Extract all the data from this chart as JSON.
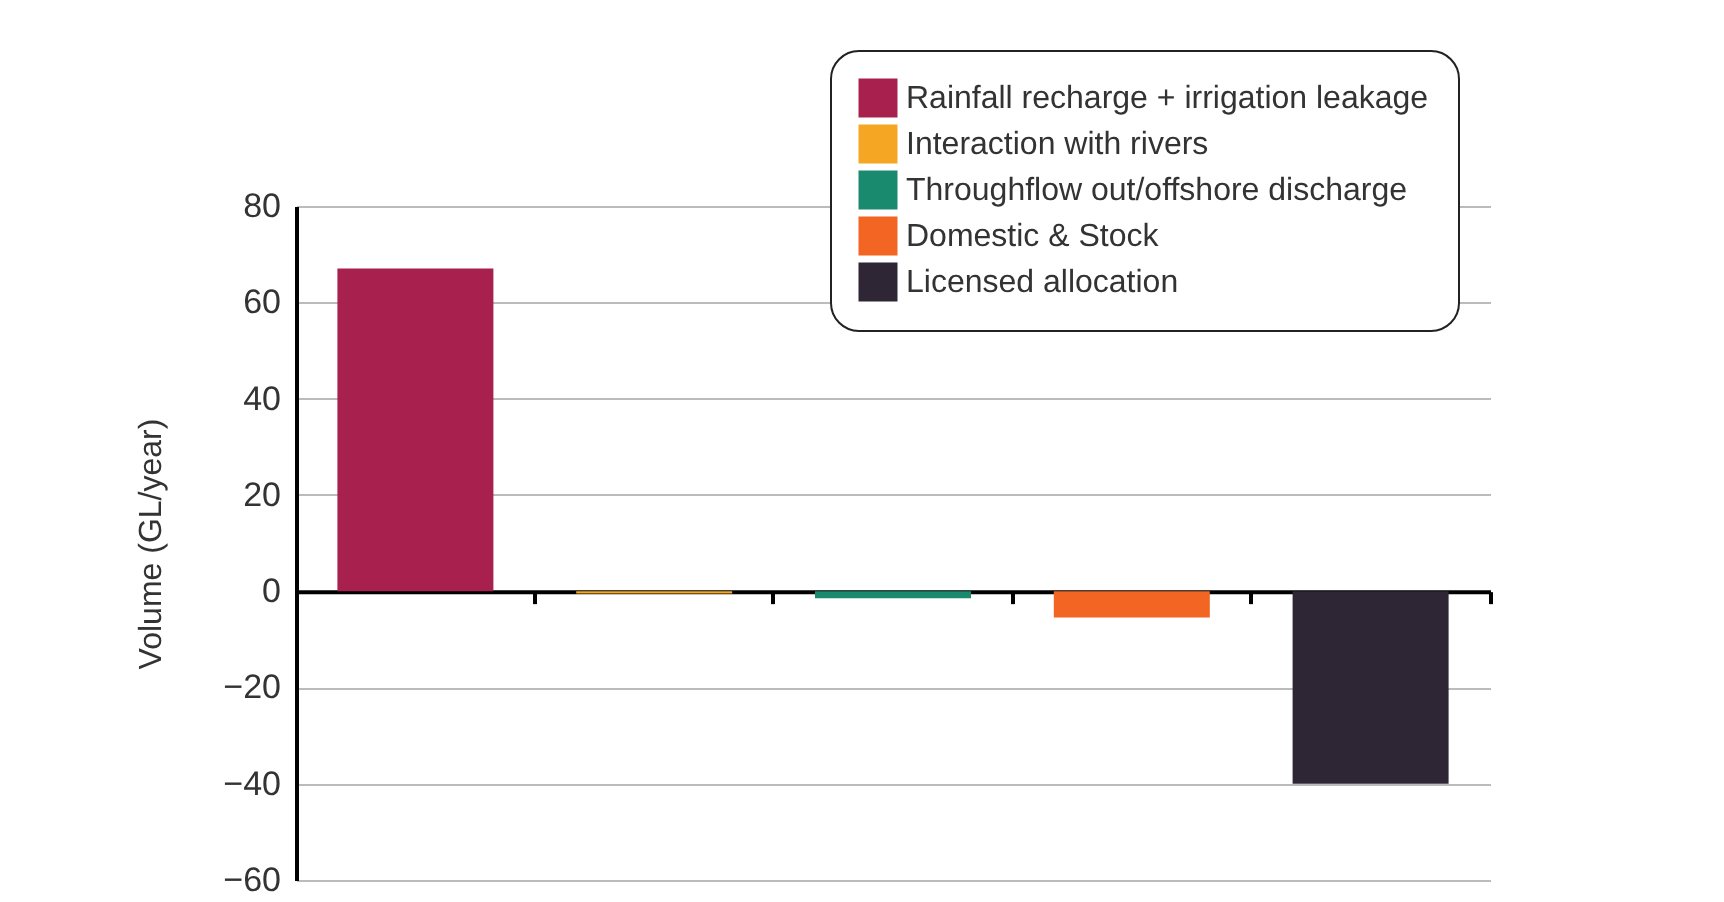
{
  "chart_data": {
    "type": "bar",
    "ylabel": "Volume (GL/year)",
    "categories": [
      null,
      null,
      null,
      null,
      null
    ],
    "series": [
      {
        "name": "Rainfall recharge + irrigation leakage",
        "color": "#a8204e",
        "values": [
          67,
          null,
          null,
          null,
          null
        ]
      },
      {
        "name": "Interaction with rivers",
        "color": "#f5a623",
        "values": [
          null,
          -0.5,
          null,
          null,
          null
        ]
      },
      {
        "name": "Throughflow out/offshore discharge",
        "color": "#1a8a6e",
        "values": [
          null,
          null,
          -1.5,
          null,
          null
        ]
      },
      {
        "name": "Domestic & Stock",
        "color": "#f26522",
        "values": [
          null,
          null,
          null,
          -5.5,
          null
        ]
      },
      {
        "name": "Licensed allocation",
        "color": "#2e2535",
        "values": [
          null,
          null,
          null,
          null,
          -40
        ]
      }
    ],
    "ylim": [
      -60,
      80
    ],
    "yticks": [
      -60,
      -40,
      -20,
      0,
      20,
      40,
      60,
      80
    ],
    "grid": "y",
    "legend": "top right",
    "tick_labels": "y"
  }
}
